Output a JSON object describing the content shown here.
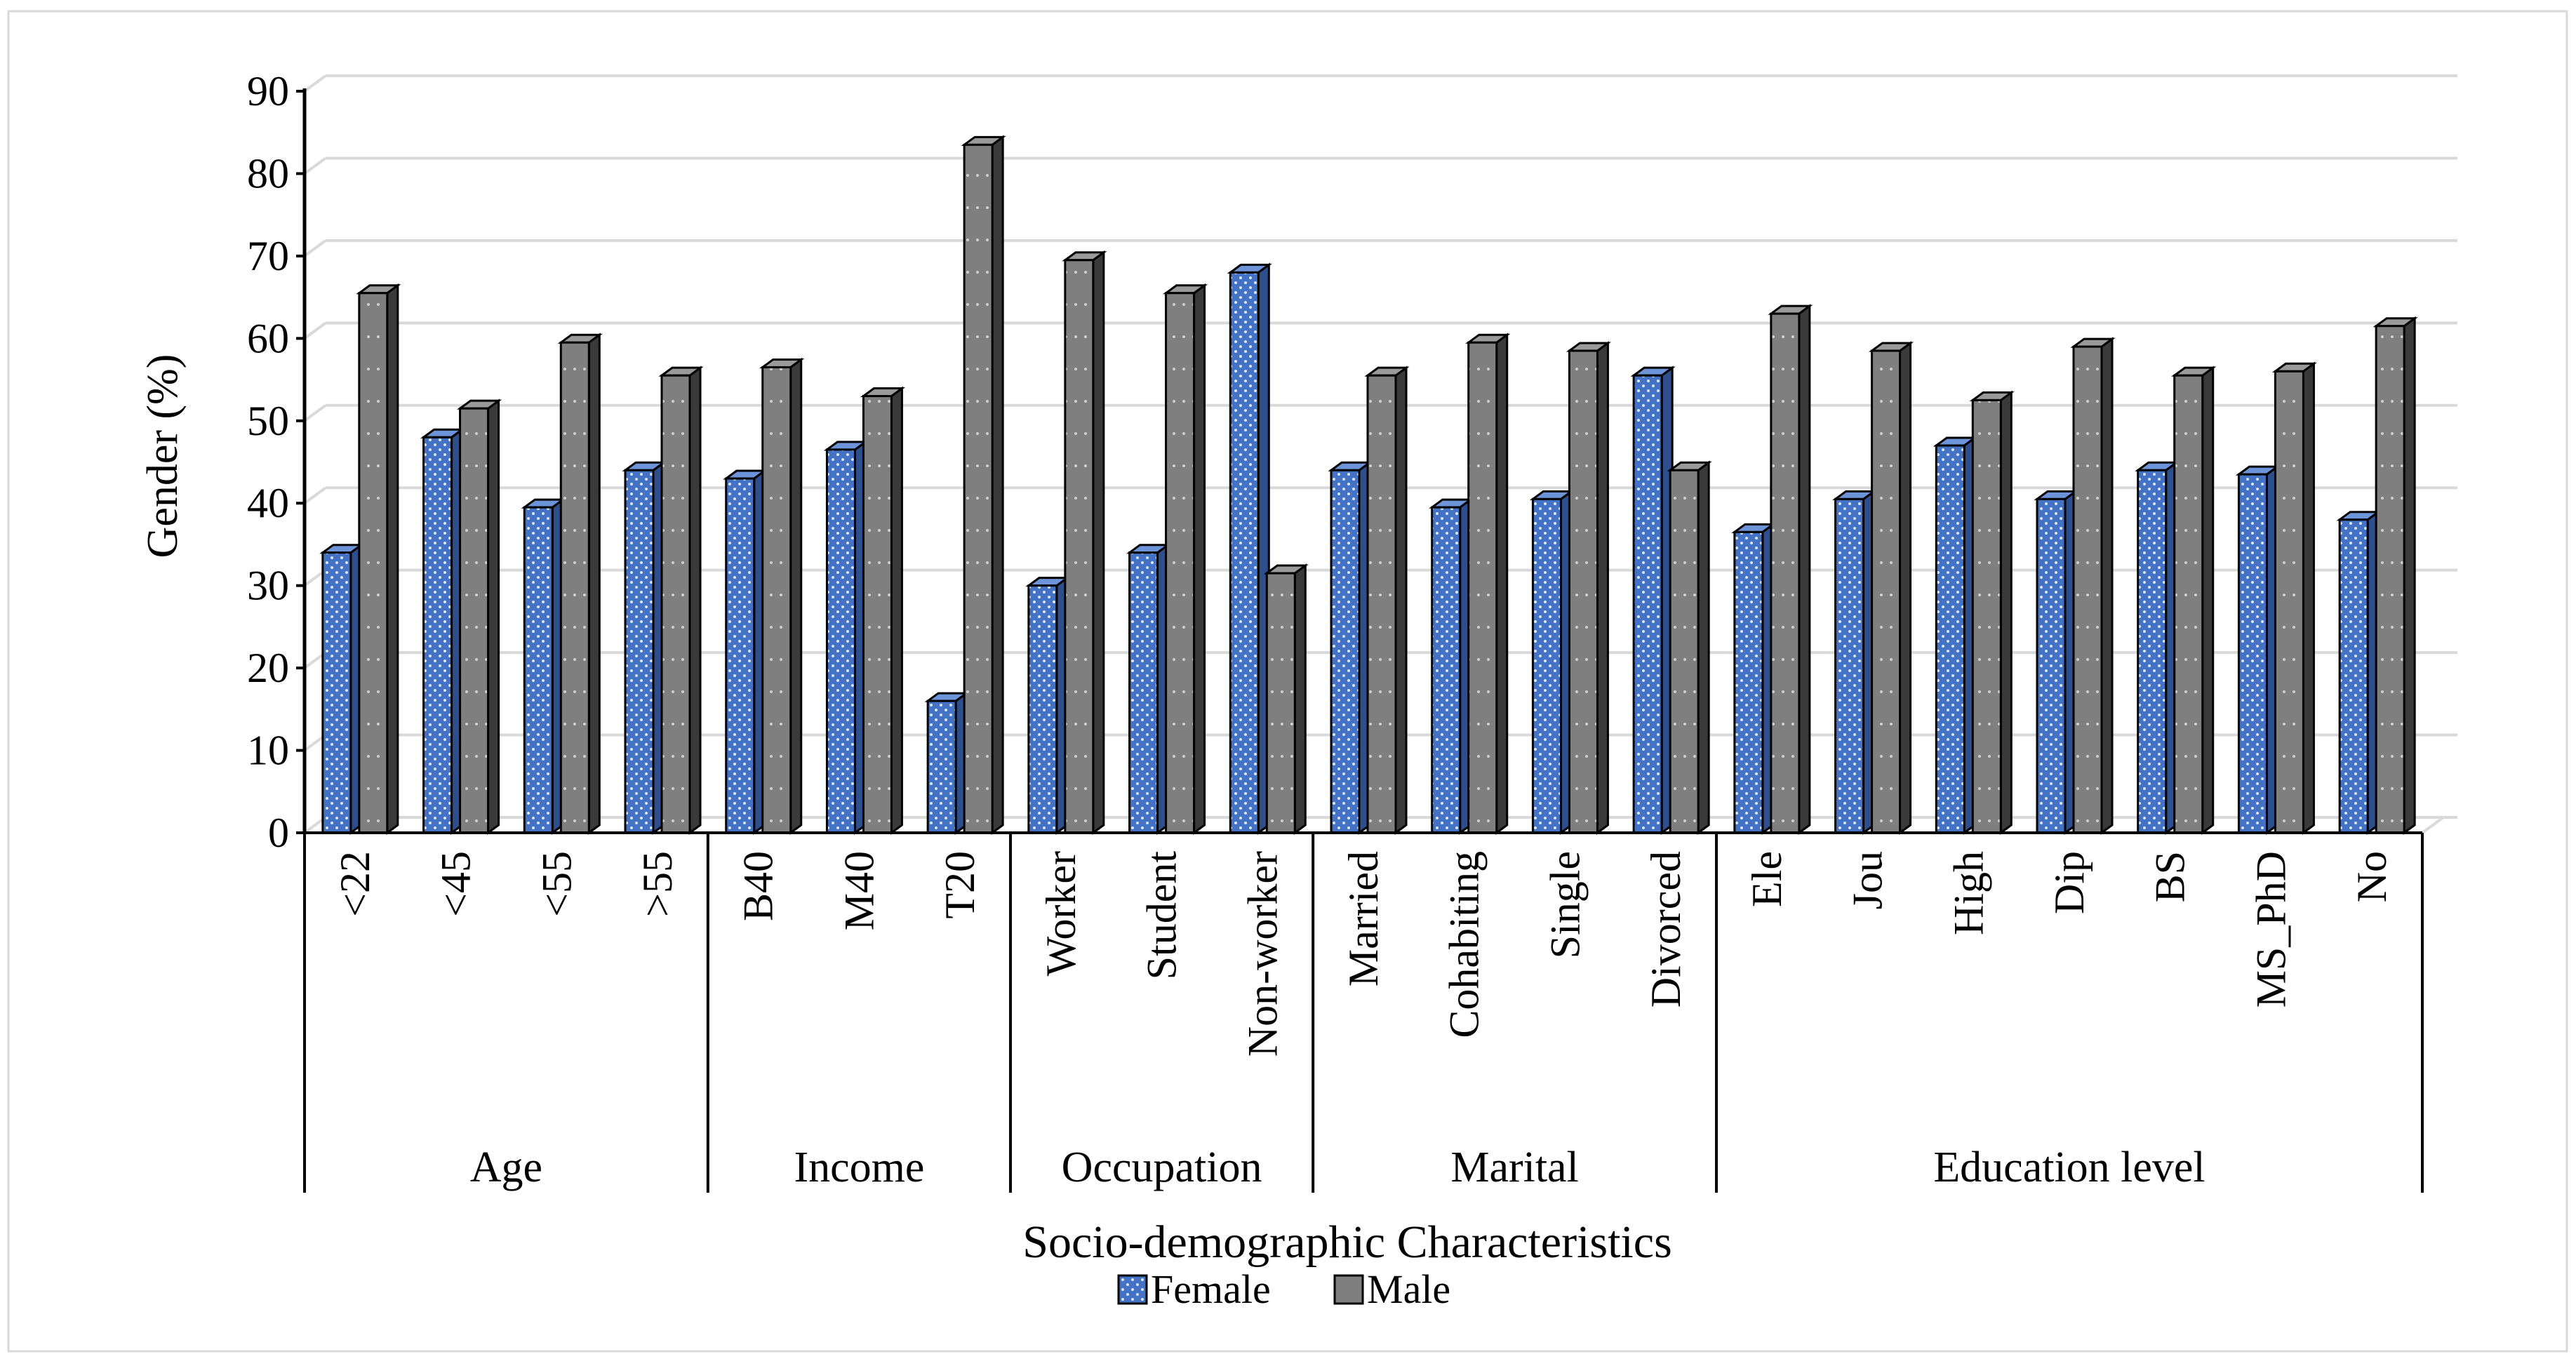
{
  "chart_data": {
    "type": "bar",
    "style": "3d-clustered-column",
    "title": "",
    "xlabel": "Socio-demographic Characteristics",
    "ylabel": "Gender (%)",
    "ylim": [
      0,
      90
    ],
    "yticks": [
      0,
      10,
      20,
      30,
      40,
      50,
      60,
      70,
      80,
      90
    ],
    "gridlines": true,
    "legend_position": "bottom-center",
    "groups": [
      {
        "name": "Age",
        "categories": [
          "<22",
          "<45",
          "<55",
          ">55"
        ]
      },
      {
        "name": "Income",
        "categories": [
          "B40",
          "M40",
          "T20"
        ]
      },
      {
        "name": "Occupation",
        "categories": [
          "Worker",
          "Student",
          "Non-worker"
        ]
      },
      {
        "name": "Marital",
        "categories": [
          "Married",
          "Cohabiting",
          "Single",
          "Divorced"
        ]
      },
      {
        "name": "Education level",
        "categories": [
          "Ele",
          "Jou",
          "High",
          "Dip",
          "BS",
          "MS_PhD",
          "No"
        ]
      }
    ],
    "series": [
      {
        "name": "Female",
        "color": "#4472c4",
        "values": [
          34,
          48,
          39.5,
          44,
          43,
          46.5,
          16,
          30,
          34,
          68,
          44,
          39.5,
          40.5,
          55.5,
          36.5,
          40.5,
          47,
          40.5,
          44,
          43.5,
          38
        ]
      },
      {
        "name": "Male",
        "color": "#7f7f7f",
        "values": [
          65.5,
          51.5,
          59.5,
          55.5,
          56.5,
          53,
          83.5,
          69.5,
          65.5,
          31.5,
          55.5,
          59.5,
          58.5,
          44,
          63,
          58.5,
          52.5,
          59,
          55.5,
          56,
          61.5
        ]
      }
    ]
  }
}
